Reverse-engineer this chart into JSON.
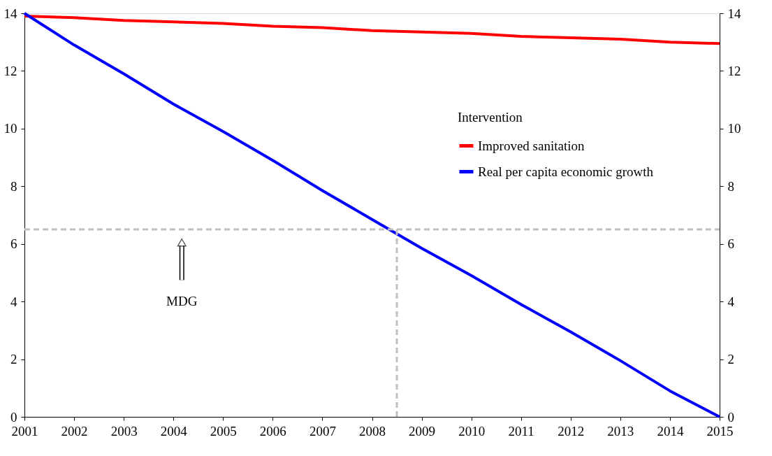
{
  "chart_data": {
    "type": "line",
    "x": [
      2001,
      2002,
      2003,
      2004,
      2005,
      2006,
      2007,
      2008,
      2009,
      2010,
      2011,
      2012,
      2013,
      2014,
      2015
    ],
    "series": [
      {
        "name": "Improved sanitation",
        "color": "#ff0000",
        "values": [
          13.9,
          13.85,
          13.75,
          13.7,
          13.65,
          13.55,
          13.5,
          13.4,
          13.35,
          13.3,
          13.2,
          13.15,
          13.1,
          13.0,
          12.95
        ]
      },
      {
        "name": "Real per capita economic growth",
        "color": "#0000ff",
        "values": [
          14,
          12.9,
          11.9,
          10.85,
          9.9,
          8.9,
          7.85,
          6.85,
          5.85,
          4.9,
          3.9,
          2.95,
          1.95,
          0.9,
          0
        ]
      }
    ],
    "legend_title": "Intervention",
    "legend": "right",
    "xlim": [
      2001,
      2015
    ],
    "xticks": [
      2001,
      2002,
      2003,
      2004,
      2005,
      2006,
      2007,
      2008,
      2009,
      2010,
      2011,
      2012,
      2013,
      2014,
      2015
    ],
    "ylim": [
      0,
      14
    ],
    "yticks": [
      0,
      2,
      4,
      6,
      8,
      10,
      12,
      14
    ],
    "y2lim": [
      0,
      14
    ],
    "y2ticks": [
      0,
      2,
      4,
      6,
      8,
      10,
      12,
      14
    ],
    "ref_lines": [
      {
        "axis": "y",
        "value": 6.5,
        "color": "#c0c0c0",
        "line_style": "dashed"
      },
      {
        "axis": "x",
        "value": 2008.5,
        "color": "#c0c0c0",
        "line_style": "dashed"
      }
    ],
    "annotations": [
      "MDG"
    ],
    "grid": false,
    "marker": "none",
    "line_style": "solid"
  }
}
